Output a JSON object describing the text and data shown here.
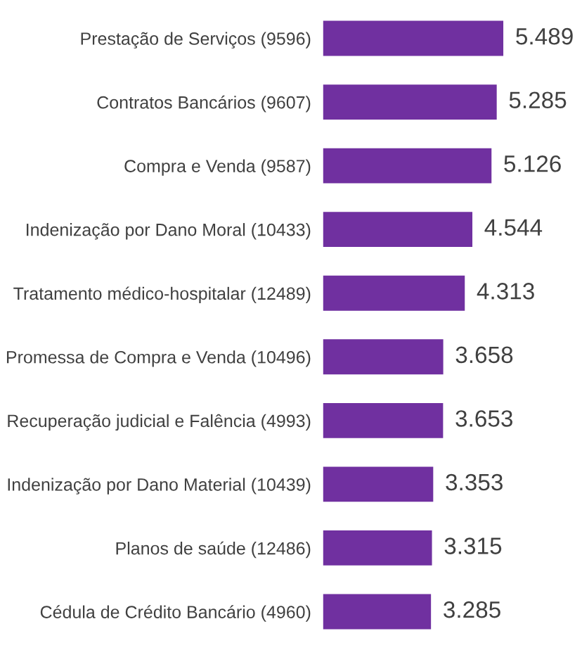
{
  "chart_data": {
    "type": "bar",
    "orientation": "horizontal",
    "categories": [
      "Prestação de Serviços (9596)",
      "Contratos Bancários (9607)",
      "Compra e Venda (9587)",
      "Indenização por Dano Moral (10433)",
      "Tratamento médico-hospitalar (12489)",
      "Promessa de Compra e Venda (10496)",
      "Recuperação judicial e Falência (4993)",
      "Indenização por Dano Material (10439)",
      "Planos de saúde (12486)",
      "Cédula de Crédito Bancário (4960)"
    ],
    "values": [
      5489,
      5285,
      5126,
      4544,
      4313,
      3658,
      3653,
      3353,
      3315,
      3285
    ],
    "value_labels": [
      "5.489",
      "5.285",
      "5.126",
      "4.544",
      "4.313",
      "3.658",
      "3.653",
      "3.353",
      "3.315",
      "3.285"
    ],
    "color": "#7030a0",
    "grid": false,
    "legend": false,
    "tick_labels": "y"
  }
}
